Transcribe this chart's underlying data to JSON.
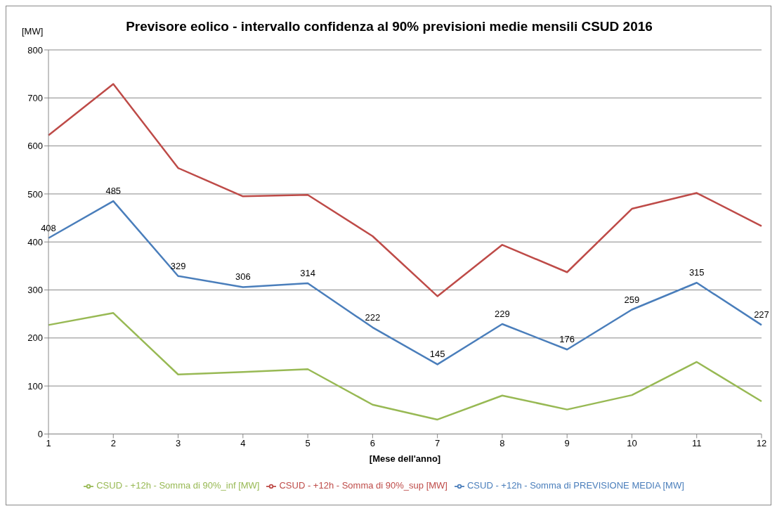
{
  "chart_data": {
    "type": "line",
    "title": "Previsore eolico - intervallo confidenza al 90% previsioni medie mensili CSUD 2016",
    "xlabel": "[Mese dell'anno]",
    "ylabel": "[MW]",
    "categories": [
      "1",
      "2",
      "3",
      "4",
      "5",
      "6",
      "7",
      "8",
      "9",
      "10",
      "11",
      "12"
    ],
    "series": [
      {
        "name": "CSUD - +12h - Somma di PREVISIONE MEDIA [MW]",
        "color": "#4a7ebb",
        "values": [
          408,
          485,
          329,
          306,
          314,
          222,
          145,
          229,
          176,
          259,
          315,
          227
        ],
        "value_labels": [
          "408",
          "485",
          "329",
          "306",
          "314",
          "222",
          "145",
          "229",
          "176",
          "259",
          "315",
          "227"
        ]
      },
      {
        "name": "CSUD - +12h - Somma di 90%_sup [MW]",
        "color": "#be4b48",
        "values": [
          622,
          729,
          554,
          495,
          498,
          412,
          287,
          394,
          337,
          469,
          502,
          433
        ]
      },
      {
        "name": "CSUD - +12h - Somma di 90%_inf [MW]",
        "color": "#98b954",
        "values": [
          227,
          252,
          124,
          129,
          135,
          61,
          30,
          80,
          51,
          81,
          150,
          68
        ]
      }
    ],
    "ylim": [
      0,
      800
    ],
    "yticks": [
      0,
      100,
      200,
      300,
      400,
      500,
      600,
      700,
      800
    ],
    "grid": "y",
    "legend": "bottom",
    "marker": "none",
    "line_style": "solid"
  }
}
